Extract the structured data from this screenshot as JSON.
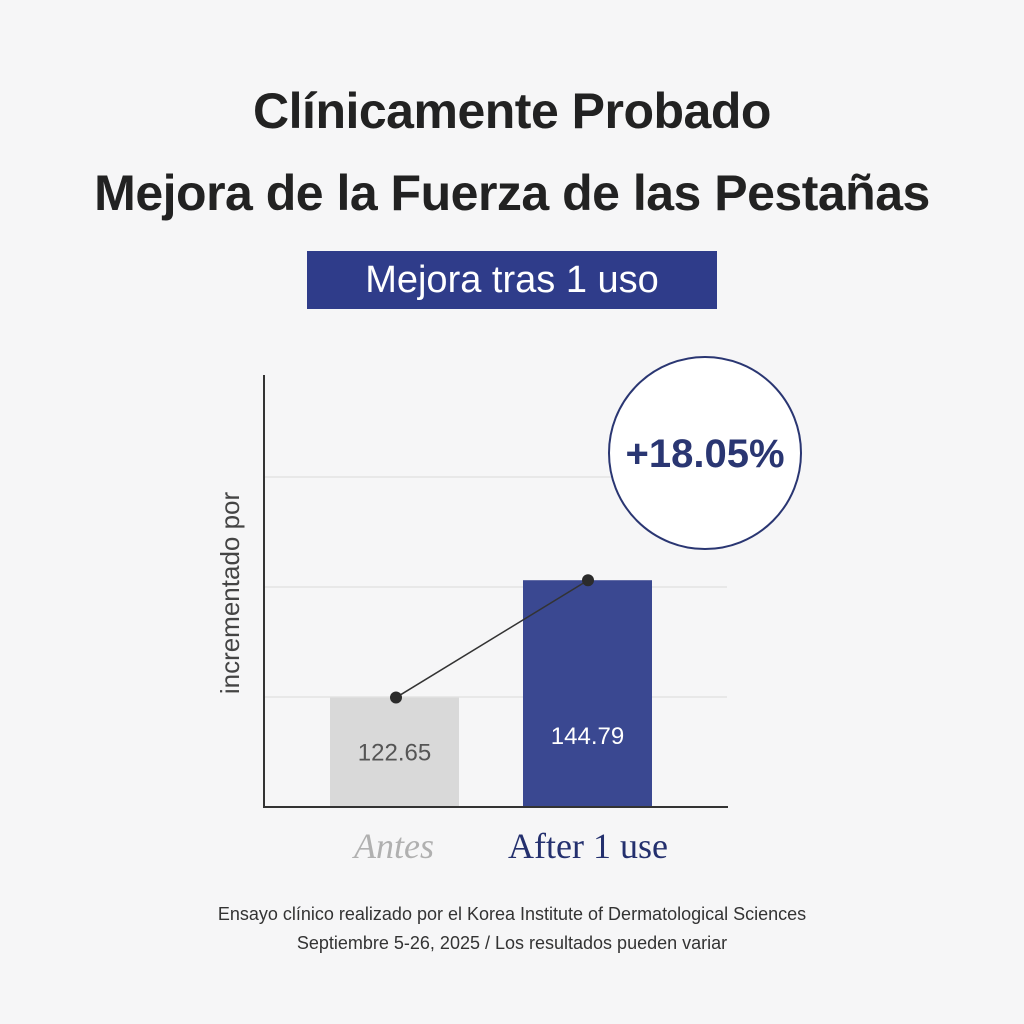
{
  "header": {
    "title_line1": "Clínicamente Probado",
    "title_line2": "Mejora de la Fuerza de las Pestañas",
    "badge": "Mejora tras 1 uso"
  },
  "chart_data": {
    "type": "bar",
    "categories": [
      "Antes",
      "After 1 use"
    ],
    "values": [
      122.65,
      144.79
    ],
    "value_labels": [
      "122.65",
      "144.79"
    ],
    "ylabel": "incrementado por",
    "callout": "+18.05%",
    "grid": true,
    "colors": {
      "before_bar": "#d9d9d9",
      "after_bar": "#3a4891",
      "before_label": "#b0b0b0",
      "after_label": "#24306e",
      "callout_text": "#2a3672",
      "before_value_text": "#555555",
      "after_value_text": "#ffffff"
    }
  },
  "footer": {
    "line1": "Ensayo clínico realizado por el Korea Institute of Dermatological Sciences",
    "line2": "Septiembre 5-26, 2025 / Los resultados pueden variar"
  }
}
